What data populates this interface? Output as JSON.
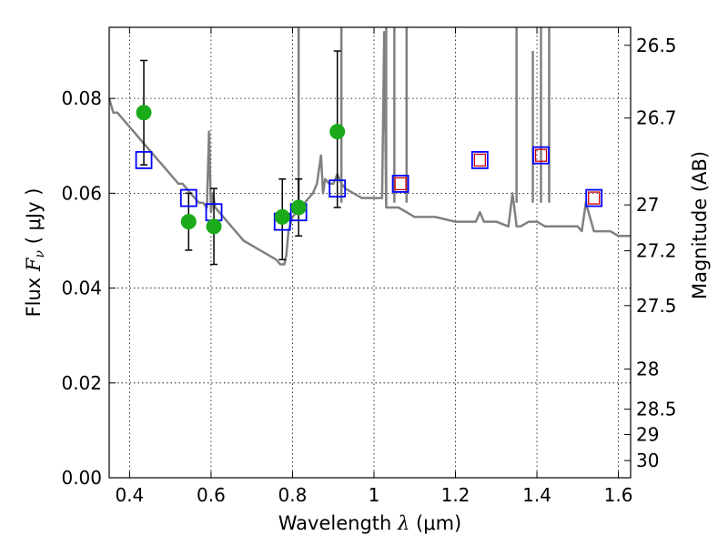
{
  "chart_data": {
    "type": "scatter",
    "xlabel_text": "Wavelength",
    "xlabel_symbol": "λ",
    "xlabel_unit": "(μm)",
    "ylabel_text": "Flux",
    "ylabel_symbol": "F",
    "ylabel_sub": "ν",
    "ylabel_unit": "( μJy )",
    "y2label": "Magnitude (AB)",
    "xlim": [
      0.35,
      1.63
    ],
    "ylim": [
      0.0,
      0.095
    ],
    "grid": true,
    "xticks": [
      {
        "value": 0.4,
        "label": "0.4"
      },
      {
        "value": 0.6,
        "label": "0.6"
      },
      {
        "value": 0.8,
        "label": "0.8"
      },
      {
        "value": 1.0,
        "label": "1"
      },
      {
        "value": 1.2,
        "label": "1.2"
      },
      {
        "value": 1.4,
        "label": "1.4"
      },
      {
        "value": 1.6,
        "label": "1.6"
      }
    ],
    "yticks": [
      {
        "value": 0.0,
        "label": "0.00"
      },
      {
        "value": 0.02,
        "label": "0.02"
      },
      {
        "value": 0.04,
        "label": "0.04"
      },
      {
        "value": 0.06,
        "label": "0.06"
      },
      {
        "value": 0.08,
        "label": "0.08"
      }
    ],
    "y2ticks": [
      {
        "mag": 26.5,
        "label": "26.5"
      },
      {
        "mag": 26.7,
        "label": "26.7"
      },
      {
        "mag": 27.0,
        "label": "27"
      },
      {
        "mag": 27.2,
        "label": "27.2"
      },
      {
        "mag": 27.5,
        "label": "27.5"
      },
      {
        "mag": 28.0,
        "label": "28"
      },
      {
        "mag": 28.5,
        "label": "28.5"
      },
      {
        "mag": 29.0,
        "label": "29"
      },
      {
        "mag": 30.0,
        "label": "30"
      }
    ],
    "series": [
      {
        "kind": "spectrum",
        "color": "#808080",
        "x": [
          0.35,
          0.36,
          0.37,
          0.38,
          0.39,
          0.4,
          0.41,
          0.42,
          0.43,
          0.44,
          0.45,
          0.46,
          0.47,
          0.48,
          0.49,
          0.5,
          0.51,
          0.52,
          0.53,
          0.54,
          0.55,
          0.56,
          0.57,
          0.58,
          0.59,
          0.595,
          0.6,
          0.605,
          0.61,
          0.62,
          0.64,
          0.66,
          0.68,
          0.7,
          0.72,
          0.74,
          0.76,
          0.77,
          0.78,
          0.785,
          0.79,
          0.8,
          0.81,
          0.82,
          0.83,
          0.84,
          0.85,
          0.86,
          0.87,
          0.875,
          0.88,
          0.89,
          0.9,
          0.91,
          0.92,
          0.93,
          0.95,
          0.97,
          1.0,
          1.02,
          1.025,
          1.03,
          1.06,
          1.08,
          1.1,
          1.15,
          1.2,
          1.25,
          1.26,
          1.27,
          1.3,
          1.33,
          1.34,
          1.35,
          1.36,
          1.38,
          1.4,
          1.42,
          1.45,
          1.48,
          1.5,
          1.51,
          1.52,
          1.54,
          1.56,
          1.58,
          1.6,
          1.63
        ],
        "y": [
          0.08,
          0.077,
          0.077,
          0.076,
          0.075,
          0.074,
          0.073,
          0.072,
          0.071,
          0.07,
          0.069,
          0.068,
          0.067,
          0.066,
          0.065,
          0.064,
          0.063,
          0.062,
          0.062,
          0.061,
          0.06,
          0.059,
          0.058,
          0.058,
          0.057,
          0.073,
          0.056,
          0.06,
          0.057,
          0.056,
          0.054,
          0.052,
          0.05,
          0.049,
          0.048,
          0.047,
          0.046,
          0.045,
          0.045,
          0.047,
          0.052,
          0.055,
          0.056,
          0.057,
          0.058,
          0.059,
          0.06,
          0.062,
          0.068,
          0.06,
          0.063,
          0.062,
          0.062,
          0.064,
          0.062,
          0.061,
          0.06,
          0.059,
          0.059,
          0.059,
          0.094,
          0.057,
          0.057,
          0.056,
          0.055,
          0.055,
          0.054,
          0.054,
          0.056,
          0.054,
          0.054,
          0.053,
          0.06,
          0.053,
          0.053,
          0.054,
          0.054,
          0.053,
          0.053,
          0.053,
          0.053,
          0.052,
          0.058,
          0.052,
          0.052,
          0.052,
          0.051,
          0.051
        ]
      },
      {
        "kind": "spikes",
        "color": "#808080",
        "x": [
          0.815,
          0.92,
          1.03,
          1.05,
          1.08,
          1.35,
          1.39,
          1.41,
          1.43
        ],
        "ymax": [
          0.095,
          0.095,
          0.095,
          0.095,
          0.095,
          0.095,
          0.09,
          0.095,
          0.095
        ]
      },
      {
        "kind": "observed",
        "color": "#1aaa1a",
        "x": [
          0.435,
          0.545,
          0.607,
          0.775,
          0.815,
          0.91
        ],
        "y": [
          0.077,
          0.054,
          0.053,
          0.055,
          0.057,
          0.073
        ],
        "yerr_low": [
          0.066,
          0.048,
          0.045,
          0.046,
          0.051,
          0.057
        ],
        "yerr_high": [
          0.088,
          0.06,
          0.061,
          0.063,
          0.063,
          0.09
        ]
      },
      {
        "kind": "model-box",
        "color": "#0000ff",
        "x": [
          0.435,
          0.545,
          0.607,
          0.775,
          0.815,
          0.91,
          1.065,
          1.26,
          1.41,
          1.54
        ],
        "y": [
          0.067,
          0.059,
          0.056,
          0.054,
          0.056,
          0.061,
          0.062,
          0.067,
          0.068,
          0.059
        ]
      },
      {
        "kind": "model-inner",
        "color": "#cc0000",
        "x": [
          1.065,
          1.26,
          1.41,
          1.54
        ],
        "y": [
          0.062,
          0.067,
          0.068,
          0.059
        ]
      }
    ]
  }
}
